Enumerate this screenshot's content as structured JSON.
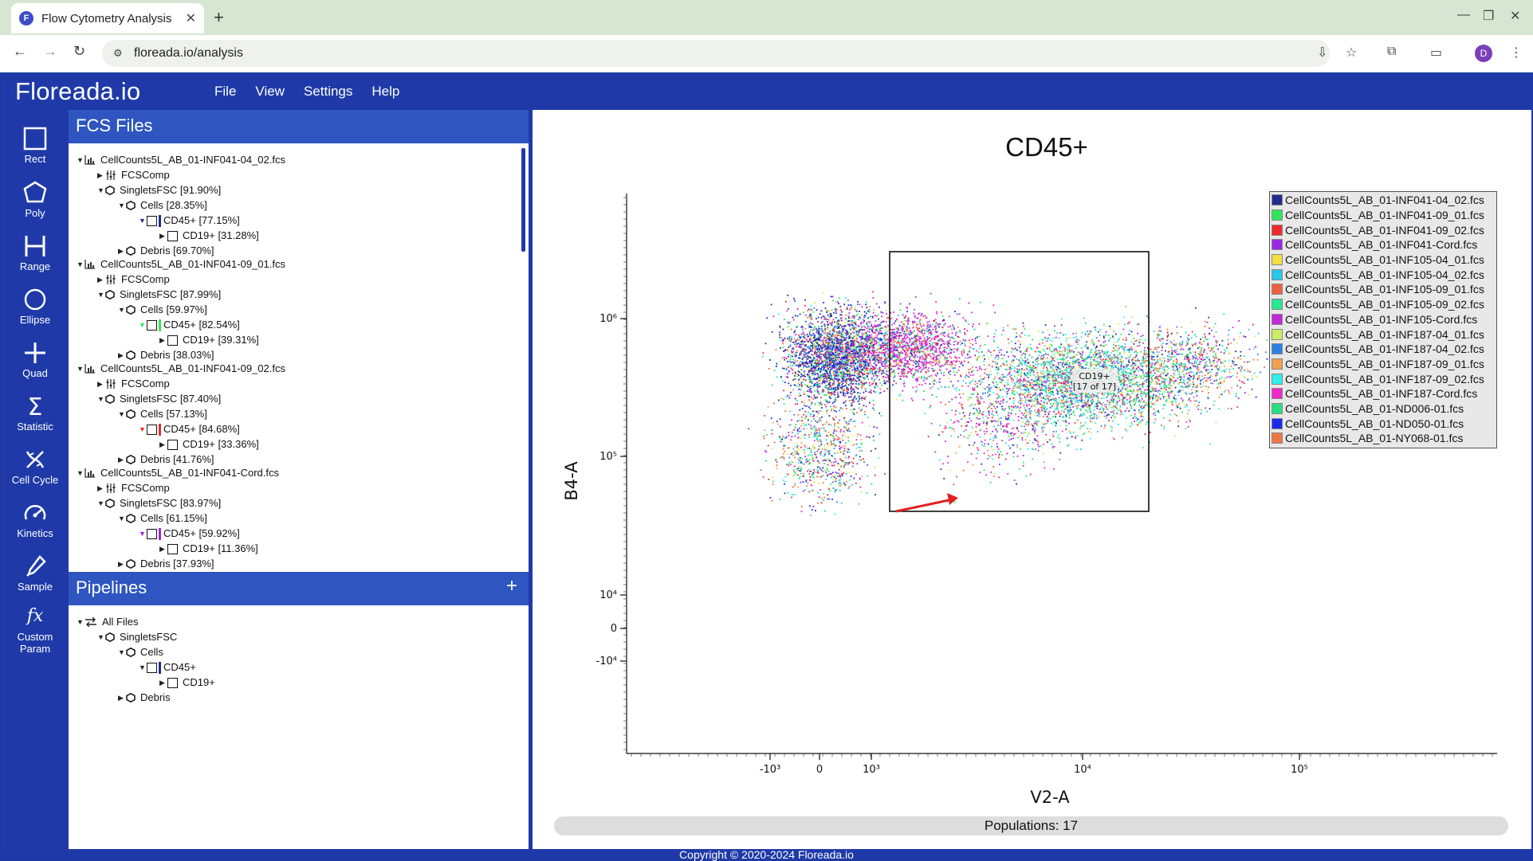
{
  "browser": {
    "tab_title": "Flow Cytometry Analysis",
    "favicon_letter": "F",
    "url": "floreada.io/analysis",
    "profile_letter": "D"
  },
  "app": {
    "logo": "Floreada.io",
    "menu": [
      "File",
      "View",
      "Settings",
      "Help"
    ],
    "footer": "Copyright © 2020-2024 Floreada.io"
  },
  "tools": [
    {
      "label": "Rect",
      "icon": "rect-icon"
    },
    {
      "label": "Poly",
      "icon": "poly-icon"
    },
    {
      "label": "Range",
      "icon": "range-icon"
    },
    {
      "label": "Ellipse",
      "icon": "ellipse-icon"
    },
    {
      "label": "Quad",
      "icon": "quad-icon"
    },
    {
      "label": "Statistic",
      "icon": "sigma-icon"
    },
    {
      "label": "Cell Cycle",
      "icon": "dna-icon"
    },
    {
      "label": "Kinetics",
      "icon": "gauge-icon"
    },
    {
      "label": "Sample",
      "icon": "pipette-icon"
    },
    {
      "label": "Custom\nParam",
      "icon": "fx-icon"
    }
  ],
  "fcs_panel": {
    "title": "FCS Files",
    "files": [
      {
        "name": "CellCounts5L_AB_01-INF041-04_02.fcs",
        "comp": "FCSComp",
        "singlets": "SingletsFSC [91.90%]",
        "cells": "Cells [28.35%]",
        "cd45": "CD45+ [77.15%]",
        "cd19": "CD19+ [31.28%]",
        "debris": "Debris [69.70%]",
        "color": "#1f2d8f"
      },
      {
        "name": "CellCounts5L_AB_01-INF041-09_01.fcs",
        "comp": "FCSComp",
        "singlets": "SingletsFSC [87.99%]",
        "cells": "Cells [59.97%]",
        "cd45": "CD45+ [82.54%]",
        "cd19": "CD19+ [39.31%]",
        "debris": "Debris [38.03%]",
        "color": "#2ee85a"
      },
      {
        "name": "CellCounts5L_AB_01-INF041-09_02.fcs",
        "comp": "FCSComp",
        "singlets": "SingletsFSC [87.40%]",
        "cells": "Cells [57.13%]",
        "cd45": "CD45+ [84.68%]",
        "cd19": "CD19+ [33.36%]",
        "debris": "Debris [41.76%]",
        "color": "#ee2a2a"
      },
      {
        "name": "CellCounts5L_AB_01-INF041-Cord.fcs",
        "comp": "FCSComp",
        "singlets": "SingletsFSC [83.97%]",
        "cells": "Cells [61.15%]",
        "cd45": "CD45+ [59.92%]",
        "cd19": "CD19+ [11.36%]",
        "debris": "Debris [37.93%]",
        "color": "#9a28e0"
      }
    ]
  },
  "pipelines": {
    "title": "Pipelines",
    "add_label": "+",
    "items": [
      "All Files",
      "SingletsFSC",
      "Cells",
      "CD45+",
      "CD19+",
      "Debris"
    ]
  },
  "plot": {
    "title": "CD45+",
    "xlabel": "V2-A",
    "ylabel": "B4-A",
    "x_ticks": [
      "-10³",
      "0",
      "10³",
      "10⁴",
      "10⁵"
    ],
    "y_ticks": [
      "10⁶",
      "10⁵",
      "10⁴",
      "0",
      "-10⁴"
    ],
    "gate_label": "CD19+",
    "gate_count": "[17 of 17]",
    "populations": "Populations: 17"
  },
  "legend": [
    {
      "name": "CellCounts5L_AB_01-INF041-04_02.fcs",
      "color": "#1f2d8f"
    },
    {
      "name": "CellCounts5L_AB_01-INF041-09_01.fcs",
      "color": "#2ee85a"
    },
    {
      "name": "CellCounts5L_AB_01-INF041-09_02.fcs",
      "color": "#ee2a2a"
    },
    {
      "name": "CellCounts5L_AB_01-INF041-Cord.fcs",
      "color": "#9a28e0"
    },
    {
      "name": "CellCounts5L_AB_01-INF105-04_01.fcs",
      "color": "#f0e040"
    },
    {
      "name": "CellCounts5L_AB_01-INF105-04_02.fcs",
      "color": "#28c8e8"
    },
    {
      "name": "CellCounts5L_AB_01-INF105-09_01.fcs",
      "color": "#f06040"
    },
    {
      "name": "CellCounts5L_AB_01-INF105-09_02.fcs",
      "color": "#28e890"
    },
    {
      "name": "CellCounts5L_AB_01-INF105-Cord.fcs",
      "color": "#c028d8"
    },
    {
      "name": "CellCounts5L_AB_01-INF187-04_01.fcs",
      "color": "#c8f060"
    },
    {
      "name": "CellCounts5L_AB_01-INF187-04_02.fcs",
      "color": "#2e80e0"
    },
    {
      "name": "CellCounts5L_AB_01-INF187-09_01.fcs",
      "color": "#f0a050"
    },
    {
      "name": "CellCounts5L_AB_01-INF187-09_02.fcs",
      "color": "#30f0e8"
    },
    {
      "name": "CellCounts5L_AB_01-INF187-Cord.fcs",
      "color": "#f028c8"
    },
    {
      "name": "CellCounts5L_AB_01-ND006-01.fcs",
      "color": "#28e080"
    },
    {
      "name": "CellCounts5L_AB_01-ND050-01.fcs",
      "color": "#1a2ae8"
    },
    {
      "name": "CellCounts5L_AB_01-NY068-01.fcs",
      "color": "#f07840"
    }
  ]
}
